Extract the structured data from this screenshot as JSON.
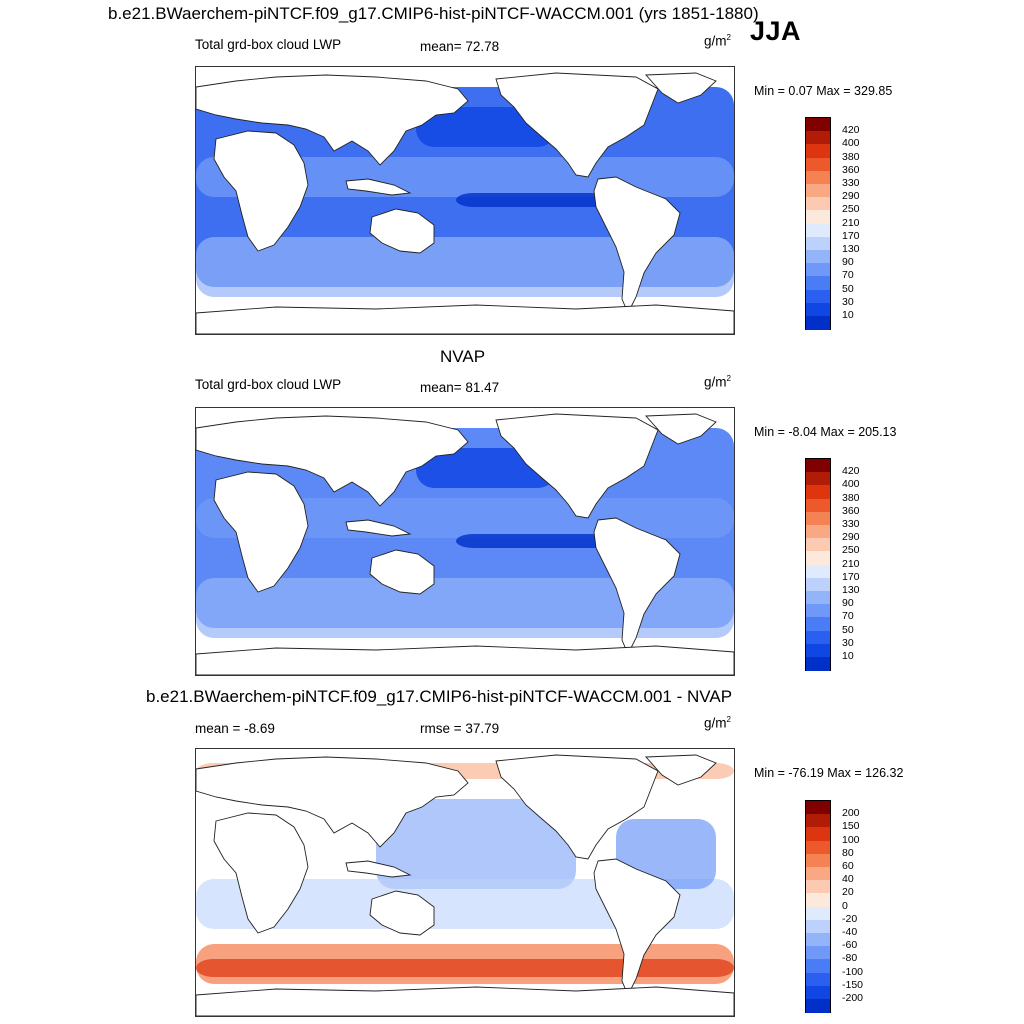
{
  "header": {
    "title": "b.e21.BWaerchem-piNTCF.f09_g17.CMIP6-hist-piNTCF-WACCM.001 (yrs 1851-1880)",
    "season": "JJA"
  },
  "colors": {
    "lwp_scale": [
      "#00007f",
      "#0019a6",
      "#0030c8",
      "#1046e3",
      "#2a5ff0",
      "#4a7cf5",
      "#6f98f8",
      "#94b4fa",
      "#bcd2fc",
      "#dfeafd",
      "#fde8dc",
      "#fbcab0",
      "#f8a882",
      "#f48253",
      "#ec5a2b",
      "#dc3510",
      "#b01c06",
      "#800000"
    ],
    "diff_scale": [
      "#00007f",
      "#0019a6",
      "#0030c8",
      "#1046e3",
      "#2a5ff0",
      "#4a7cf5",
      "#6f98f8",
      "#94b4fa",
      "#bcd2fc",
      "#dfeafd",
      "#fde8dc",
      "#fbcab0",
      "#f8a882",
      "#f48253",
      "#ec5a2b",
      "#dc3510",
      "#b01c06",
      "#800000"
    ]
  },
  "chart_data": [
    {
      "type": "heatmap",
      "panel": "model",
      "section_title": "",
      "left_label": "Total grd-box cloud LWP",
      "center_label": "mean=  72.78",
      "units_base": "g/m",
      "units_exp": "2",
      "min_text": "Min =   0.07 Max = 329.85",
      "levels": [
        "420",
        "400",
        "380",
        "360",
        "330",
        "290",
        "250",
        "210",
        "170",
        "130",
        "90",
        "70",
        "50",
        "30",
        "10"
      ],
      "mean": 72.78,
      "min": 0.07,
      "max": 329.85
    },
    {
      "type": "heatmap",
      "panel": "obs",
      "section_title": "NVAP",
      "left_label": "Total grd-box cloud LWP",
      "center_label": "mean=  81.47",
      "units_base": "g/m",
      "units_exp": "2",
      "min_text": "Min =  -8.04 Max = 205.13",
      "levels": [
        "420",
        "400",
        "380",
        "360",
        "330",
        "290",
        "250",
        "210",
        "170",
        "130",
        "90",
        "70",
        "50",
        "30",
        "10"
      ],
      "mean": 81.47,
      "min": -8.04,
      "max": 205.13
    },
    {
      "type": "heatmap",
      "panel": "diff",
      "section_title": "b.e21.BWaerchem-piNTCF.f09_g17.CMIP6-hist-piNTCF-WACCM.001 - NVAP",
      "left_label": "mean =  -8.69",
      "center_label": "rmse =  37.79",
      "units_base": "g/m",
      "units_exp": "2",
      "min_text": "Min = -76.19 Max = 126.32",
      "levels": [
        "200",
        "150",
        "100",
        "80",
        "60",
        "40",
        "20",
        "0",
        "-20",
        "-40",
        "-60",
        "-80",
        "-100",
        "-150",
        "-200"
      ],
      "mean": -8.69,
      "rmse": 37.79,
      "min": -76.19,
      "max": 126.32
    }
  ]
}
